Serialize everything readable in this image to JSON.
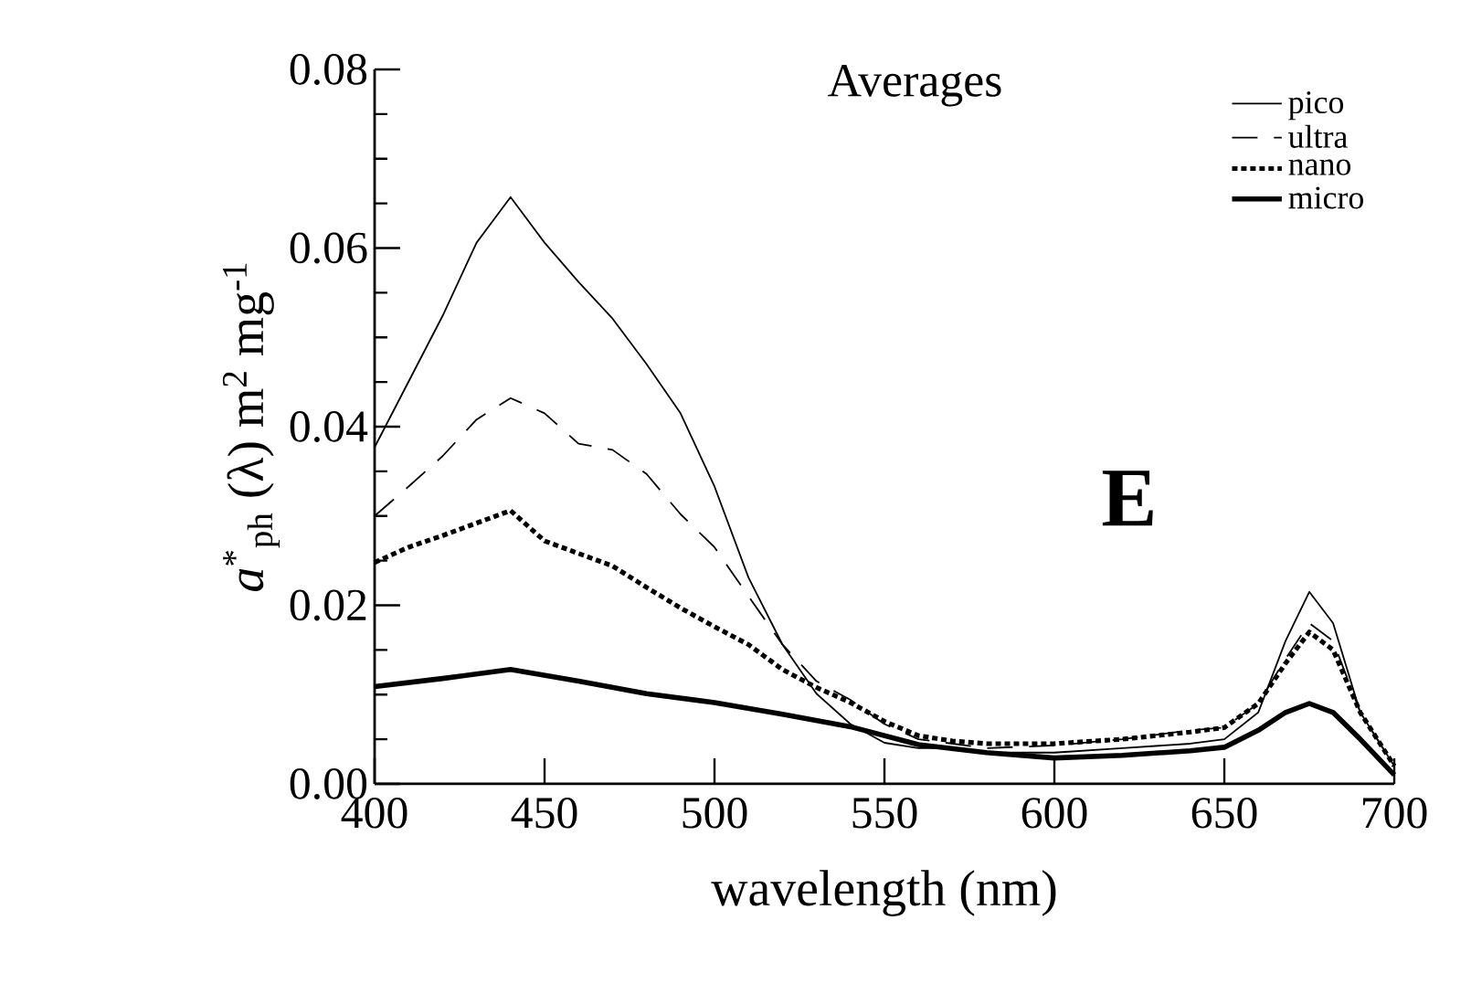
{
  "chart_data": {
    "type": "line",
    "title": "Averages",
    "xlabel": "wavelength (nm)",
    "ylabel": "*a*$^{*}$$_{ph}$ (λ) m$^{2}$ mg$^{-1}$",
    "annotations": [
      "E"
    ],
    "xlim": [
      400,
      700
    ],
    "ylim": [
      0,
      0.08
    ],
    "xticks": [
      400,
      450,
      500,
      550,
      600,
      650,
      700
    ],
    "yticks": [
      {
        "value": 0,
        "label": "0.00"
      },
      {
        "value": 0.02,
        "label": "0.02"
      },
      {
        "value": 0.04,
        "label": "0.04"
      },
      {
        "value": 0.06,
        "label": "0.06"
      },
      {
        "value": 0.08,
        "label": "0.08"
      }
    ],
    "grid": false,
    "legend": "top right",
    "marker": "none",
    "series": [
      {
        "name": "pico",
        "color": "#000000",
        "line_style": "solid",
        "x": [
          400,
          420,
          430,
          440,
          450,
          460,
          470,
          480,
          490,
          500,
          510,
          520,
          530,
          540,
          550,
          560,
          570,
          580,
          600,
          620,
          640,
          650,
          660,
          668,
          675,
          682,
          690,
          700
        ],
        "values": [
          0.0377,
          0.0524,
          0.0606,
          0.0657,
          0.0606,
          0.0562,
          0.0521,
          0.047,
          0.0415,
          0.0333,
          0.0231,
          0.0156,
          0.0101,
          0.0067,
          0.0046,
          0.004,
          0.004,
          0.0035,
          0.0035,
          0.004,
          0.0045,
          0.005,
          0.008,
          0.016,
          0.0215,
          0.018,
          0.008,
          0.002
        ]
      },
      {
        "name": "ultra",
        "color": "#000000",
        "line_style": "dashed",
        "x": [
          400,
          410,
          420,
          430,
          440,
          450,
          460,
          470,
          480,
          490,
          500,
          510,
          520,
          530,
          540,
          550,
          560,
          580,
          600,
          620,
          640,
          650,
          660,
          668,
          675,
          682,
          690,
          700
        ],
        "values": [
          0.03,
          0.0333,
          0.0367,
          0.0408,
          0.0432,
          0.0415,
          0.0381,
          0.0374,
          0.0347,
          0.0302,
          0.0265,
          0.021,
          0.0156,
          0.0115,
          0.0094,
          0.0067,
          0.005,
          0.004,
          0.0043,
          0.005,
          0.006,
          0.0063,
          0.009,
          0.014,
          0.018,
          0.016,
          0.008,
          0.002
        ]
      },
      {
        "name": "nano",
        "color": "#000000",
        "line_style": "dotted",
        "x": [
          400,
          410,
          420,
          430,
          440,
          450,
          460,
          470,
          480,
          490,
          500,
          510,
          520,
          530,
          540,
          550,
          560,
          570,
          580,
          600,
          620,
          640,
          650,
          660,
          668,
          675,
          682,
          690,
          700
        ],
        "values": [
          0.0248,
          0.0265,
          0.0278,
          0.0292,
          0.0306,
          0.0272,
          0.0258,
          0.0244,
          0.022,
          0.0197,
          0.0176,
          0.0156,
          0.0128,
          0.0108,
          0.0091,
          0.007,
          0.0054,
          0.0048,
          0.0045,
          0.0045,
          0.005,
          0.0058,
          0.0063,
          0.009,
          0.0135,
          0.017,
          0.015,
          0.008,
          0.002
        ]
      },
      {
        "name": "micro",
        "color": "#000000",
        "line_style": "solid",
        "x": [
          400,
          420,
          440,
          460,
          480,
          500,
          520,
          540,
          560,
          580,
          600,
          620,
          640,
          650,
          660,
          668,
          675,
          682,
          690,
          700
        ],
        "values": [
          0.0109,
          0.0118,
          0.0128,
          0.0115,
          0.0101,
          0.0091,
          0.0078,
          0.0064,
          0.0044,
          0.0035,
          0.0029,
          0.0032,
          0.0037,
          0.0041,
          0.006,
          0.008,
          0.009,
          0.008,
          0.005,
          0.001
        ]
      }
    ]
  }
}
